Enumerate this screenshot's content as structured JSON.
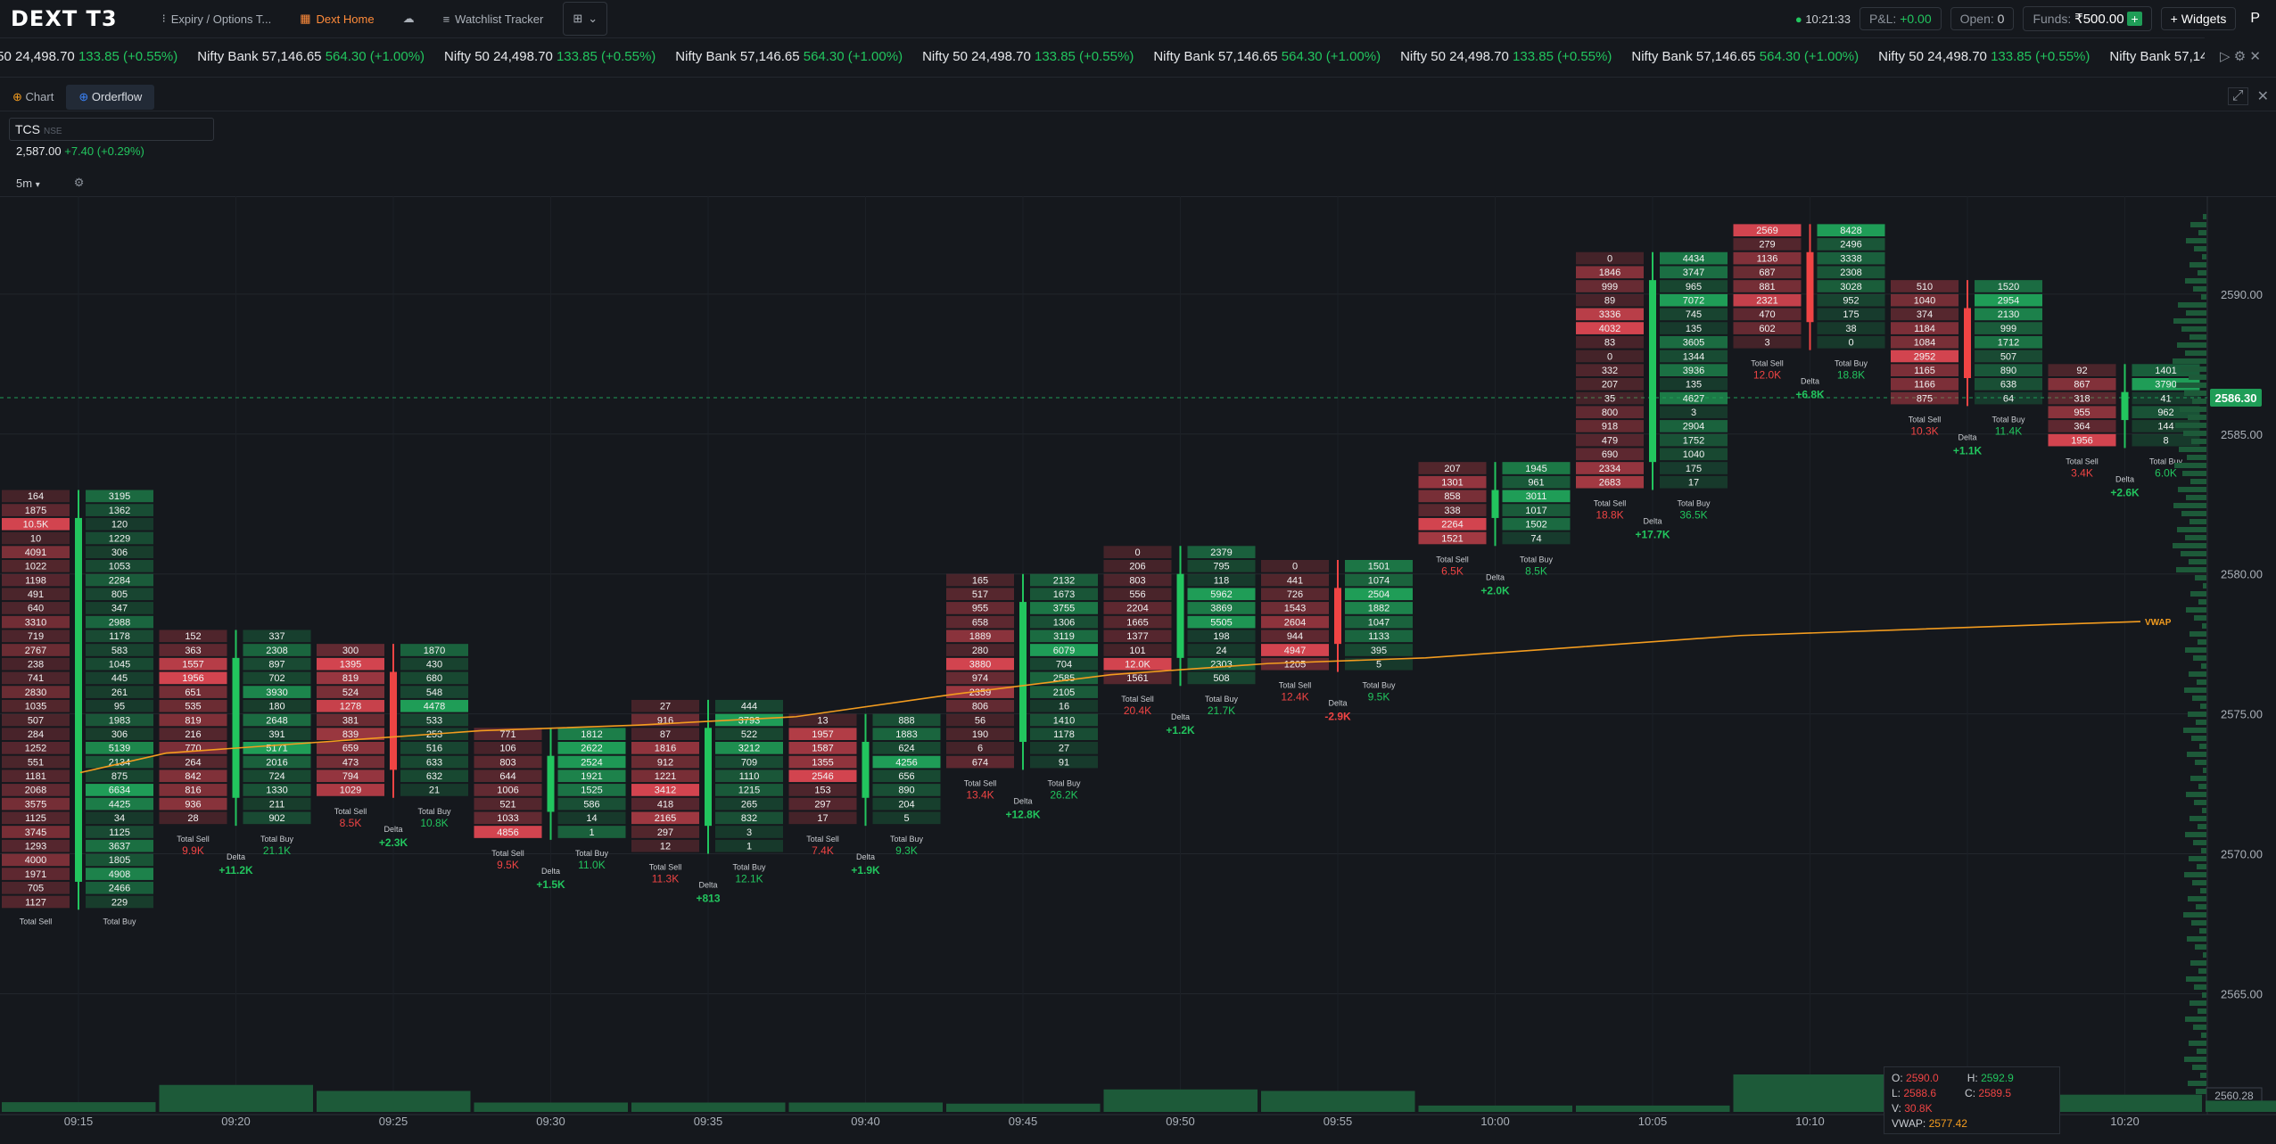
{
  "app": {
    "logo": "DEXT T3"
  },
  "header": {
    "tabs": [
      {
        "label": "Expiry / Options T..."
      },
      {
        "label": "Dext Home"
      },
      {
        "label": "Watchlist Tracker"
      }
    ],
    "clock": "10:21:33",
    "pnl_label": "P&L:",
    "pnl_value": "+0.00",
    "open_label": "Open:",
    "open_value": "0",
    "funds_label": "Funds:",
    "funds_value": "₹500.00",
    "widgets_label": "Widgets",
    "avatar": "P"
  },
  "ticker": [
    {
      "name": "Nifty Bank",
      "price": "57,146.65",
      "change": "564.30 (+1.00%)"
    },
    {
      "name": "Nifty 50",
      "price": "24,498.70",
      "change": "133.85 (+0.55%)"
    }
  ],
  "chart_tabs": [
    {
      "label": "Chart"
    },
    {
      "label": "Orderflow"
    }
  ],
  "symbol": {
    "name": "TCS",
    "exchange": "NSE",
    "price": "2,587.00",
    "change": "+7.40 (+0.29%)"
  },
  "timeframe": "5m",
  "colors": {
    "bg": "#15181d",
    "sell": "#d2444f",
    "buy": "#1f9d57",
    "vwap": "#f39c1f",
    "grid": "#22262d"
  },
  "chart_data": {
    "type": "footprint",
    "symbol": "TCS",
    "timeframe": "5m",
    "ylim": [
      2561.0,
      2593.5
    ],
    "y_ticks": [
      2565.0,
      2570.0,
      2575.0,
      2580.0,
      2585.0,
      2590.0
    ],
    "x_ticks": [
      "09:15",
      "09:20",
      "09:25",
      "09:30",
      "09:35",
      "09:40",
      "09:45",
      "09:50",
      "09:55",
      "10:00",
      "10:05",
      "10:10",
      "10:15",
      "10:20"
    ],
    "last_price": "2586.30",
    "cursor_price": "2560.28",
    "bars": [
      {
        "time": "09:15",
        "top": 2583.0,
        "step": 0.5,
        "total_sell": "",
        "total_buy": "",
        "delta": "",
        "sell": [
          164,
          1875,
          "10.5K",
          10,
          4091,
          1022,
          1198,
          491,
          640,
          3310,
          719,
          2767,
          238,
          741,
          2830,
          1035,
          507,
          284,
          1252,
          551,
          1181,
          2068,
          3575,
          1125,
          3745,
          1293,
          4000,
          1971,
          705,
          1127
        ],
        "buy": [
          3195,
          1362,
          120,
          1229,
          306,
          1053,
          2284,
          805,
          347,
          2988,
          1178,
          583,
          1045,
          445,
          261,
          95,
          1983,
          306,
          5139,
          2134,
          875,
          6634,
          4425,
          34,
          1125,
          3637,
          1805,
          4908,
          2466,
          229
        ]
      },
      {
        "time": "09:20",
        "top": 2578.0,
        "step": 0.5,
        "total_sell": "9.9K",
        "total_buy": "21.1K",
        "delta": "+11.2K",
        "sell": [
          152,
          363,
          1557,
          1956,
          651,
          535,
          819,
          216,
          770,
          264,
          842,
          816,
          936,
          28
        ],
        "buy": [
          337,
          2308,
          897,
          702,
          3930,
          180,
          2648,
          391,
          5171,
          2016,
          724,
          1330,
          211,
          902
        ]
      },
      {
        "time": "09:25",
        "top": 2577.5,
        "step": 0.5,
        "total_sell": "8.5K",
        "total_buy": "10.8K",
        "delta": "+2.3K",
        "sell": [
          300,
          1395,
          819,
          524,
          1278,
          381,
          839,
          659,
          473,
          794,
          1029
        ],
        "buy": [
          1870,
          430,
          680,
          548,
          4478,
          533,
          253,
          516,
          633,
          632,
          21
        ]
      },
      {
        "time": "09:30",
        "top": 2574.5,
        "step": 0.5,
        "total_sell": "9.5K",
        "total_buy": "11.0K",
        "delta": "+1.5K",
        "sell": [
          771,
          106,
          803,
          644,
          1006,
          521,
          1033,
          4856
        ],
        "buy": [
          1812,
          2622,
          2524,
          1921,
          1525,
          586,
          14,
          "1"
        ]
      },
      {
        "time": "09:35",
        "top": 2575.5,
        "step": 0.5,
        "total_sell": "11.3K",
        "total_buy": "12.1K",
        "delta": "+813",
        "sell": [
          27,
          916,
          87,
          1816,
          912,
          1221,
          3412,
          418,
          2165,
          297,
          12
        ],
        "buy": [
          444,
          3793,
          522,
          3212,
          709,
          1110,
          1215,
          265,
          832,
          3,
          1
        ]
      },
      {
        "time": "09:40",
        "top": 2575.0,
        "step": 0.5,
        "total_sell": "7.4K",
        "total_buy": "9.3K",
        "delta": "+1.9K",
        "sell": [
          13,
          1957,
          1587,
          1355,
          2546,
          153,
          297,
          17
        ],
        "buy": [
          888,
          1883,
          624,
          4256,
          656,
          890,
          204,
          5
        ]
      },
      {
        "time": "09:45",
        "top": 2580.0,
        "step": 0.5,
        "total_sell": "13.4K",
        "total_buy": "26.2K",
        "delta": "+12.8K",
        "sell": [
          165,
          517,
          955,
          658,
          1889,
          280,
          3880,
          974,
          2359,
          806,
          56,
          190,
          6,
          674
        ],
        "buy": [
          2132,
          1673,
          3755,
          1306,
          3119,
          6079,
          704,
          2585,
          2105,
          16,
          1410,
          1178,
          27,
          91
        ]
      },
      {
        "time": "09:50",
        "top": 2581.0,
        "step": 0.5,
        "total_sell": "20.4K",
        "total_buy": "21.7K",
        "delta": "+1.2K",
        "sell": [
          0,
          206,
          803,
          556,
          2204,
          1665,
          1377,
          101,
          "12.0K",
          1561
        ],
        "buy": [
          2379,
          795,
          118,
          5962,
          3869,
          5505,
          198,
          24,
          2303,
          508
        ]
      },
      {
        "time": "09:55",
        "top": 2580.5,
        "step": 0.5,
        "total_sell": "12.4K",
        "total_buy": "9.5K",
        "delta": "-2.9K",
        "sell": [
          0,
          441,
          726,
          1543,
          2604,
          944,
          4947,
          1205
        ],
        "buy": [
          1501,
          1074,
          2504,
          1882,
          1047,
          1133,
          395,
          5
        ]
      },
      {
        "time": "10:00",
        "top": 2584.0,
        "step": 0.5,
        "total_sell": "6.5K",
        "total_buy": "8.5K",
        "delta": "+2.0K",
        "sell": [
          207,
          1301,
          858,
          338,
          2264,
          1521
        ],
        "buy": [
          1945,
          961,
          3011,
          1017,
          1502,
          74
        ]
      },
      {
        "time": "10:05",
        "top": 2591.5,
        "step": 0.5,
        "total_sell": "18.8K",
        "total_buy": "36.5K",
        "delta": "+17.7K",
        "sell": [
          0,
          1846,
          999,
          89,
          3336,
          4032,
          83,
          0,
          332,
          207,
          35,
          800,
          918,
          479,
          690,
          2334,
          2683
        ],
        "buy": [
          4434,
          3747,
          965,
          7072,
          745,
          135,
          3605,
          1344,
          3936,
          135,
          4627,
          3,
          2904,
          1752,
          1040,
          175,
          17
        ]
      },
      {
        "time": "10:10",
        "top": 2592.5,
        "step": 0.5,
        "total_sell": "12.0K",
        "total_buy": "18.8K",
        "delta": "+6.8K",
        "sell": [
          2569,
          279,
          1136,
          687,
          881,
          2321,
          470,
          602,
          3
        ],
        "buy": [
          8428,
          2496,
          3338,
          2308,
          3028,
          952,
          175,
          38,
          0
        ]
      },
      {
        "time": "10:15",
        "top": 2590.5,
        "step": 0.5,
        "total_sell": "10.3K",
        "total_buy": "11.4K",
        "delta": "+1.1K",
        "sell": [
          510,
          1040,
          374,
          1184,
          1084,
          2952,
          1165,
          1166,
          875
        ],
        "buy": [
          1520,
          2954,
          2130,
          999,
          1712,
          507,
          890,
          638,
          64
        ]
      },
      {
        "time": "10:20",
        "top": 2587.5,
        "step": 0.5,
        "total_sell": "3.4K",
        "total_buy": "6.0K",
        "delta": "+2.6K",
        "sell": [
          92,
          867,
          318,
          955,
          364,
          1956
        ],
        "buy": [
          1401,
          3790,
          41,
          962,
          144,
          8
        ]
      }
    ],
    "vwap_label": "VWAP",
    "vwap": [
      2572.9,
      2573.6,
      2574.0,
      2574.4,
      2574.6,
      2574.9,
      2575.7,
      2576.4,
      2576.8,
      2577.0,
      2577.4,
      2577.8,
      2578.0,
      2578.2,
      2578.3
    ],
    "volume": [
      260,
      720,
      560,
      250,
      250,
      250,
      220,
      600,
      560,
      170,
      170,
      1000,
      960,
      460,
      300
    ],
    "labels": {
      "total_sell": "Total Sell",
      "total_buy": "Total Buy",
      "delta": "Delta"
    }
  },
  "ohlc": {
    "o": "2590.0",
    "h": "2592.9",
    "l": "2588.6",
    "c": "2589.5",
    "v": "30.8K",
    "vwap": "2577.42"
  }
}
